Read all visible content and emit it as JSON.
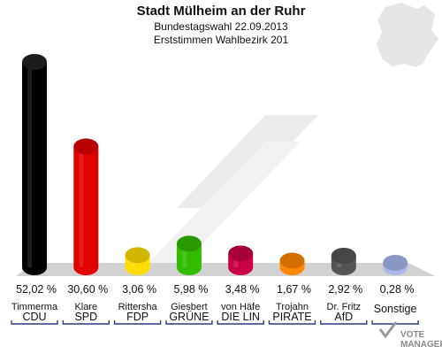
{
  "chart_data": {
    "type": "bar",
    "title": "Stadt Mülheim an der Ruhr",
    "subtitle_1": "Bundestagswahl 22.09.2013",
    "subtitle_2": "Erststimmen Wahlbezirk 201",
    "unit": "%",
    "ylim": [
      0,
      52.02
    ],
    "grid": false,
    "bars": [
      {
        "candidate": "Timmerma",
        "party": "CDU",
        "value": 52.02,
        "label": "52,02 %",
        "color": "#000000"
      },
      {
        "candidate": "Klare",
        "party": "SPD",
        "value": 30.6,
        "label": "30,60 %",
        "color": "#e00000"
      },
      {
        "candidate": "Rittersha",
        "party": "FDP",
        "value": 3.06,
        "label": "3,06 %",
        "color": "#ffdd00"
      },
      {
        "candidate": "Giesbert",
        "party": "GRÜNE",
        "value": 5.98,
        "label": "5,98 %",
        "color": "#33bb00"
      },
      {
        "candidate": "von Häfe",
        "party": "DIE LIN",
        "value": 3.48,
        "label": "3,48 %",
        "color": "#cc0044"
      },
      {
        "candidate": "Trojahn",
        "party": "PIRATE",
        "value": 1.67,
        "label": "1,67 %",
        "color": "#ff8800"
      },
      {
        "candidate": "Dr. Fritz",
        "party": "AfD",
        "value": 2.92,
        "label": "2,92 %",
        "color": "#555555"
      },
      {
        "candidate": "",
        "party": "Sonstige",
        "value": 0.28,
        "label": "0,28 %",
        "color": "#aab8ee"
      }
    ]
  },
  "watermark": {
    "line1": "VOTE",
    "line2": "MANAGER"
  }
}
